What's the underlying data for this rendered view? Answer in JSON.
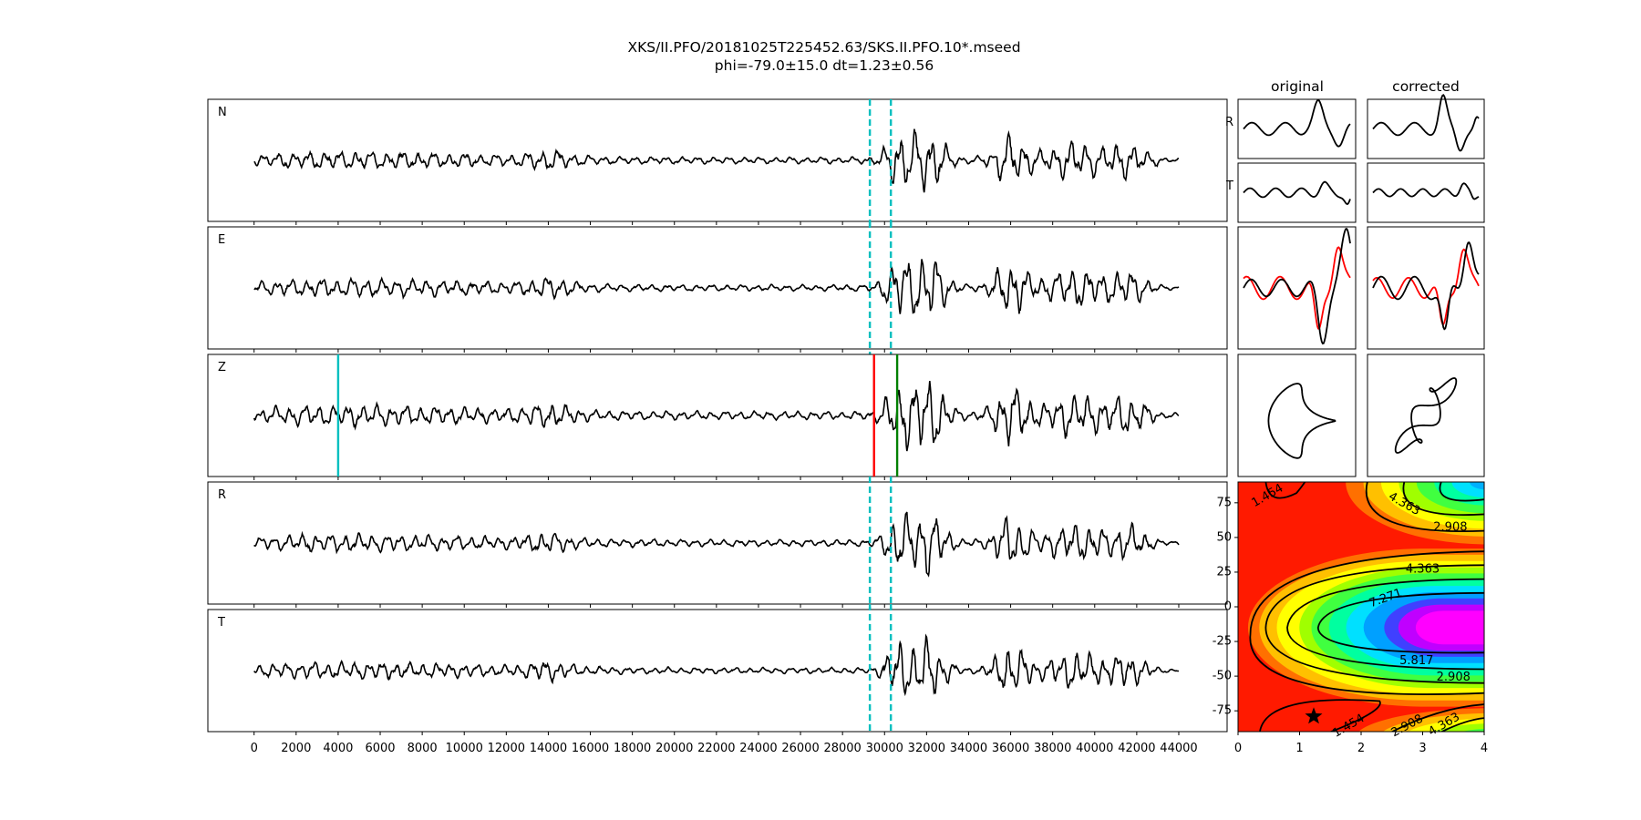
{
  "figure": {
    "title_line1": "XKS/II.PFO/20181025T225452.63/SKS.II.PFO.10*.mseed",
    "title_line2": "phi=-79.0±15.0 dt=1.23±0.56",
    "col_original": "original",
    "col_corrected": "corrected",
    "small_label_r": "R",
    "small_label_t": "T"
  },
  "chart_data": [
    {
      "type": "line",
      "name": "component waveforms",
      "panels": [
        "N",
        "E",
        "Z",
        "R",
        "T"
      ],
      "xlim": [
        -2200,
        46300
      ],
      "xticks": [
        0,
        2000,
        4000,
        6000,
        8000,
        10000,
        12000,
        14000,
        16000,
        18000,
        20000,
        22000,
        24000,
        26000,
        28000,
        30000,
        32000,
        34000,
        36000,
        38000,
        40000,
        42000,
        44000
      ],
      "trace_extent": [
        0,
        44000
      ],
      "window_start": 29300,
      "window_end": 30300,
      "markers": [
        {
          "panel": "Z",
          "x": 4000,
          "color": "#00bfbf"
        },
        {
          "panel": "Z",
          "x": 29500,
          "color": "#ff0000"
        },
        {
          "panel": "Z",
          "x": 30600,
          "color": "#008000"
        }
      ],
      "colors": {
        "trace": "#000000",
        "window": "#00bfbf"
      }
    },
    {
      "type": "line",
      "name": "window particle motion",
      "columns": [
        "original",
        "corrected"
      ],
      "rows": [
        "R",
        "T",
        "overlay",
        "particle-motion"
      ],
      "colors": {
        "primary": "#000000",
        "overlay": "#ff0000"
      }
    },
    {
      "type": "heatmap",
      "xlim": [
        0,
        4
      ],
      "ylim": [
        -90,
        90
      ],
      "xticks": [
        0,
        1,
        2,
        3,
        4
      ],
      "yticks": [
        -75,
        -50,
        -25,
        0,
        25,
        50,
        75
      ],
      "contour_levels": [
        1.454,
        2.908,
        4.363,
        5.817,
        7.271
      ],
      "contour_labels": [
        {
          "text": "1.454",
          "x": 0.48,
          "y": 80
        },
        {
          "text": "4.363",
          "x": 2.7,
          "y": 74
        },
        {
          "text": "2.908",
          "x": 3.45,
          "y": 57
        },
        {
          "text": "4.363",
          "x": 3.0,
          "y": 27
        },
        {
          "text": "7.271",
          "x": 2.4,
          "y": 6
        },
        {
          "text": "5.817",
          "x": 2.9,
          "y": -39
        },
        {
          "text": "2.908",
          "x": 3.5,
          "y": -51
        },
        {
          "text": "1.454",
          "x": 1.8,
          "y": -86
        },
        {
          "text": "2.908",
          "x": 2.75,
          "y": -86
        },
        {
          "text": "4.363",
          "x": 3.35,
          "y": -85
        }
      ],
      "best_fit": {
        "dt": 1.23,
        "phi": -79.0
      }
    }
  ]
}
